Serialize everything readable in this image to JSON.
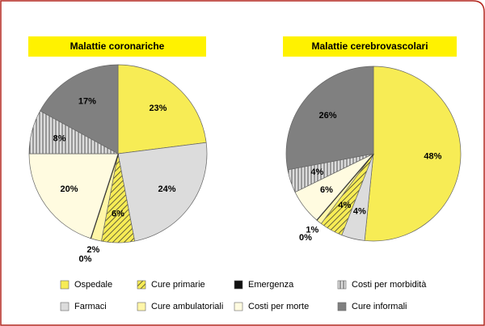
{
  "chart_data": [
    {
      "type": "pie",
      "title": "Malattie coronariche",
      "categories": [
        "Ospedale",
        "Farmaci",
        "Cure primarie",
        "Cure ambulatoriali",
        "Emergenza",
        "Costi per morte",
        "Costi per morbidità",
        "Cure informali"
      ],
      "values": [
        23,
        24,
        6,
        2,
        0,
        20,
        8,
        17
      ],
      "value_labels": [
        "23%",
        "24%",
        "6%",
        "2%",
        "0%",
        "20%",
        "8%",
        "17%"
      ],
      "colors": [
        "#f7ec55",
        "#dcdcdc",
        "#e0cf3a",
        "#fff6a8",
        "#111111",
        "#fffbe0",
        "#cfcfcf",
        "#808080"
      ],
      "patterns": [
        "none",
        "none",
        "diagonal",
        "none",
        "none",
        "none",
        "vertical",
        "none"
      ]
    },
    {
      "type": "pie",
      "title": "Malattie cerebrovascolari",
      "categories": [
        "Ospedale",
        "Farmaci",
        "Cure primarie",
        "Cure ambulatoriali",
        "Emergenza",
        "Costi per morte",
        "Costi per morbidità",
        "Cure informali"
      ],
      "values": [
        48,
        4,
        4,
        1,
        0,
        6,
        4,
        26
      ],
      "value_labels": [
        "48%",
        "4%",
        "4%",
        "1%",
        "0%",
        "6%",
        "4%",
        "26%"
      ],
      "colors": [
        "#f7ec55",
        "#dcdcdc",
        "#e0cf3a",
        "#fff6a8",
        "#111111",
        "#fffbe0",
        "#cfcfcf",
        "#808080"
      ],
      "patterns": [
        "none",
        "none",
        "diagonal",
        "none",
        "none",
        "none",
        "vertical",
        "none"
      ]
    }
  ]
}
